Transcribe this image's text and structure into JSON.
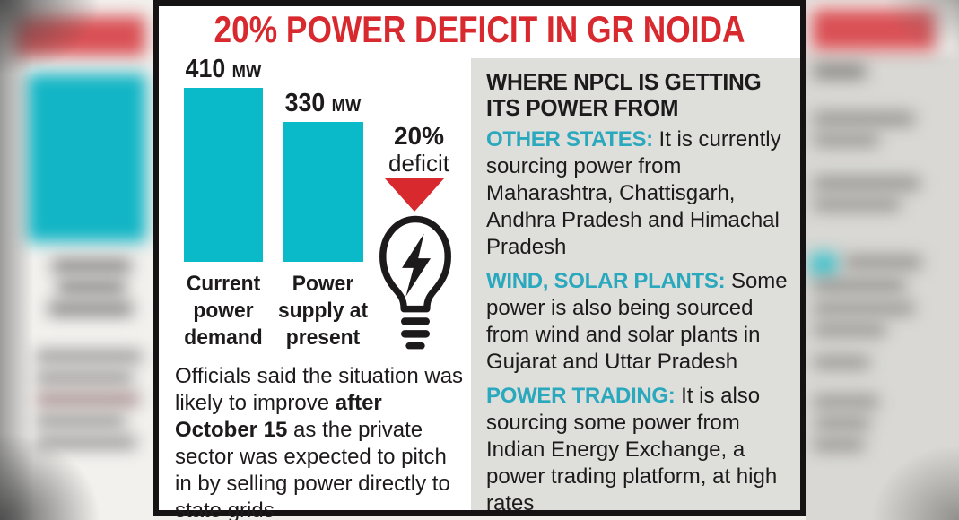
{
  "title": "20% POWER DEFICIT IN GR NOIDA",
  "chart_data": {
    "type": "bar",
    "title": "20% POWER DEFICIT IN GR NOIDA",
    "categories": [
      "Current power demand",
      "Power supply at present"
    ],
    "values": [
      410,
      330
    ],
    "unit": "MW",
    "ylim": [
      0,
      410
    ],
    "grid": false,
    "bar_color": "#0abac9",
    "bars": [
      {
        "value": "410",
        "unit": "MW",
        "label": "Current\npower\ndemand"
      },
      {
        "value": "330",
        "unit": "MW",
        "label": "Power\nsupply at\npresent"
      }
    ],
    "annotation": {
      "value": "20%",
      "label": "deficit"
    }
  },
  "note": {
    "pre": "Officials said the situation was likely to improve ",
    "bold": "after October 15",
    "post": " as the private sector was expected to pitch in by selling power directly to state grids"
  },
  "panel": {
    "heading": "WHERE NPCL IS GETTING\nITS POWER FROM",
    "sections": [
      {
        "label": "OTHER STATES:",
        "text": " It is currently sourcing power from Maharashtra, Chattisgarh, Andhra Pradesh and Himachal Pradesh"
      },
      {
        "label": "WIND, SOLAR PLANTS:",
        "text": " Some power is also being sourced from wind and solar plants in Gujarat and Uttar Pradesh"
      },
      {
        "label": "POWER TRADING:",
        "text": " It is also sourcing some power from Indian Energy Exchange, a power trading platform, at high rates"
      }
    ]
  },
  "icons": {
    "bulb": "lightbulb-with-lightning-bolt",
    "deficit_arrow": "red-triangle-down"
  },
  "colors": {
    "accent_red": "#d8292f",
    "bar_teal": "#0abac9",
    "label_cyan": "#2aa8bd",
    "panel_gray": "#dededb",
    "ink": "#1d1a1b"
  }
}
